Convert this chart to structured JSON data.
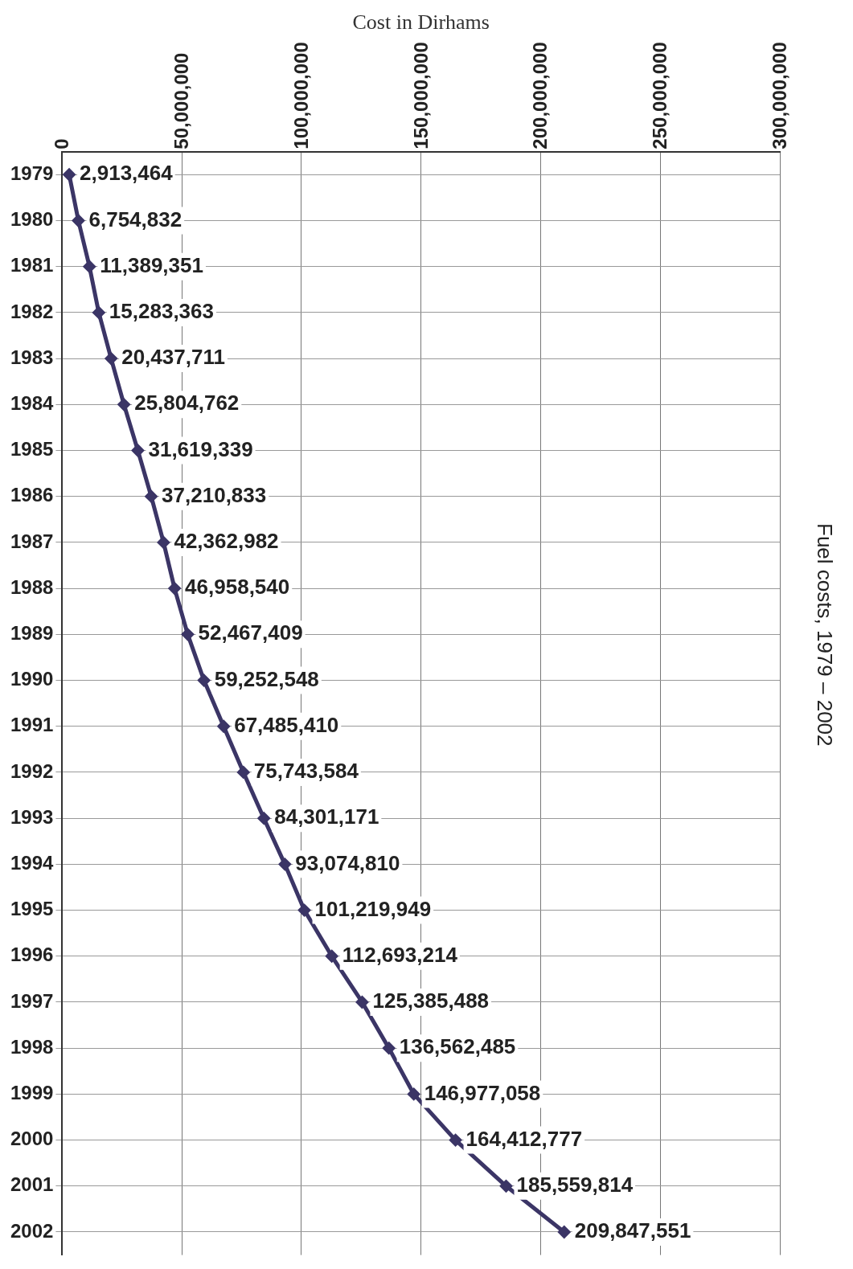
{
  "chart_data": {
    "type": "line",
    "title": "Fuel costs, 1979 – 2002",
    "xlabel": "Cost in Dirhams",
    "orientation": "horizontal",
    "categories": [
      "1979",
      "1980",
      "1981",
      "1982",
      "1983",
      "1984",
      "1985",
      "1986",
      "1987",
      "1988",
      "1989",
      "1990",
      "1991",
      "1992",
      "1993",
      "1994",
      "1995",
      "1996",
      "1997",
      "1998",
      "1999",
      "2000",
      "2001",
      "2002"
    ],
    "series": [
      {
        "color": "#3b3566",
        "values": [
          2913464,
          6754832,
          11389351,
          15283363,
          20437711,
          25804762,
          31619339,
          37210833,
          42362982,
          46958540,
          52467409,
          59252548,
          67485410,
          75743584,
          84301171,
          93074810,
          101219949,
          112693214,
          125385488,
          136562485,
          146977058,
          164412777,
          185559814,
          209847551
        ]
      }
    ],
    "xlim": [
      0,
      300000000
    ],
    "xticks": [
      {
        "value": 0,
        "label": "0"
      },
      {
        "value": 50000000,
        "label": "50,000,000"
      },
      {
        "value": 100000000,
        "label": "100,000,000"
      },
      {
        "value": 150000000,
        "label": "150,000,000"
      },
      {
        "value": 200000000,
        "label": "200,000,000"
      },
      {
        "value": 250000000,
        "label": "250,000,000"
      },
      {
        "value": 300000000,
        "label": "300,000,000"
      }
    ],
    "value_labels": [
      "2,913,464",
      "6,754,832",
      "11,389,351",
      "15,283,363",
      "20,437,711",
      "25,804,762",
      "31,619,339",
      "37,210,833",
      "42,362,982",
      "46,958,540",
      "52,467,409",
      "59,252,548",
      "67,485,410",
      "75,743,584",
      "84,301,171",
      "93,074,810",
      "101,219,949",
      "112,693,214",
      "125,385,488",
      "136,562,485",
      "146,977,058",
      "164,412,777",
      "185,559,814",
      "209,847,551"
    ],
    "grid": true,
    "legend": false,
    "marker": "diamond",
    "line_style": "solid"
  }
}
